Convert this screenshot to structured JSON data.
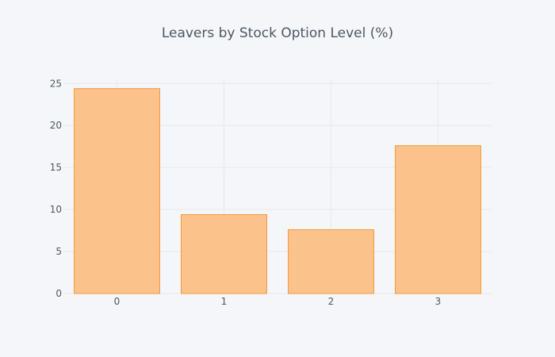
{
  "chart_data": {
    "type": "bar",
    "title": "Leavers by Stock Option Level (%)",
    "xlabel": "",
    "ylabel": "",
    "categories": [
      "0",
      "1",
      "2",
      "3"
    ],
    "series": [
      {
        "values": [
          24.4,
          9.4,
          7.6,
          17.6
        ]
      }
    ],
    "ylim": [
      0,
      25.5
    ],
    "yticks": [
      "0",
      "5",
      "10",
      "15",
      "20",
      "25"
    ],
    "ytick_values": [
      0,
      5,
      10,
      15,
      20,
      25
    ],
    "grid": true,
    "legend": "none",
    "colors": {
      "bar_fill": "#fbbf85",
      "bar_stroke": "#f39a3c",
      "grid": "#e5e8ee",
      "tick_text": "#4d5663",
      "background": "#f5f6f9"
    }
  }
}
